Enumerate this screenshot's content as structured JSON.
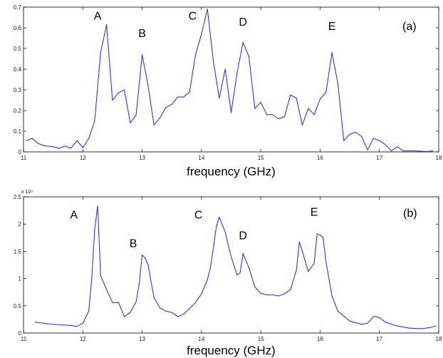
{
  "chart_data": [
    {
      "type": "line",
      "panel_label": "(a)",
      "xlabel": "frequency (GHz)",
      "ylabel": "",
      "xlim": [
        11,
        18
      ],
      "ylim": [
        0,
        0.7
      ],
      "x_ticks": [
        "11",
        "12",
        "13",
        "14",
        "15",
        "16",
        "17",
        "18"
      ],
      "y_ticks": [
        "0",
        "0.1",
        "0.2",
        "0.3",
        "0.4",
        "0.5",
        "0.6",
        "0.7"
      ],
      "scale_exponent": "",
      "grid": false,
      "annotations": [
        {
          "text": "A",
          "x": 12.25,
          "y": 0.64
        },
        {
          "text": "B",
          "x": 13.0,
          "y": 0.555
        },
        {
          "text": "C",
          "x": 13.85,
          "y": 0.64
        },
        {
          "text": "D",
          "x": 14.7,
          "y": 0.61
        },
        {
          "text": "E",
          "x": 16.2,
          "y": 0.59
        }
      ],
      "series": [
        {
          "x": [
            11.05,
            11.15,
            11.25,
            11.35,
            11.5,
            11.6,
            11.7,
            11.8,
            11.9,
            12.0,
            12.1,
            12.2,
            12.3,
            12.4,
            12.5,
            12.6,
            12.7,
            12.8,
            12.9,
            13.0,
            13.1,
            13.2,
            13.3,
            13.4,
            13.5,
            13.6,
            13.7,
            13.8,
            13.9,
            14.0,
            14.1,
            14.2,
            14.3,
            14.4,
            14.5,
            14.6,
            14.7,
            14.8,
            14.9,
            15.0,
            15.1,
            15.2,
            15.3,
            15.4,
            15.5,
            15.6,
            15.7,
            15.8,
            15.9,
            16.0,
            16.1,
            16.2,
            16.3,
            16.4,
            16.5,
            16.6,
            16.7,
            16.8,
            16.9,
            17.0,
            17.1,
            17.2,
            17.3,
            17.4,
            17.6,
            17.8,
            17.9
          ],
          "y": [
            0.055,
            0.065,
            0.04,
            0.03,
            0.025,
            0.018,
            0.028,
            0.018,
            0.055,
            0.02,
            0.065,
            0.15,
            0.48,
            0.615,
            0.25,
            0.285,
            0.3,
            0.14,
            0.18,
            0.47,
            0.32,
            0.13,
            0.165,
            0.215,
            0.23,
            0.265,
            0.265,
            0.29,
            0.47,
            0.57,
            0.69,
            0.44,
            0.26,
            0.4,
            0.19,
            0.38,
            0.53,
            0.46,
            0.21,
            0.24,
            0.18,
            0.18,
            0.16,
            0.17,
            0.275,
            0.26,
            0.13,
            0.21,
            0.18,
            0.255,
            0.29,
            0.48,
            0.33,
            0.055,
            0.085,
            0.095,
            0.075,
            0.01,
            0.065,
            0.055,
            0.035,
            0.005,
            0.025,
            0.005,
            0.005,
            0.002,
            0.005
          ]
        }
      ]
    },
    {
      "type": "line",
      "panel_label": "(b)",
      "xlabel": "frequency (GHz)",
      "ylabel": "",
      "xlim": [
        11,
        18
      ],
      "ylim": [
        0,
        2.5
      ],
      "x_ticks": [
        "11",
        "12",
        "13",
        "14",
        "15",
        "16",
        "17",
        "18"
      ],
      "y_ticks": [
        "0",
        "0.5",
        "1",
        "1.5",
        "2",
        "2.5"
      ],
      "scale_exponent": "x 10⁹",
      "grid": false,
      "annotations": [
        {
          "text": "A",
          "x": 11.85,
          "y": 2.1
        },
        {
          "text": "B",
          "x": 12.85,
          "y": 1.58
        },
        {
          "text": "C",
          "x": 13.95,
          "y": 2.1
        },
        {
          "text": "D",
          "x": 14.7,
          "y": 1.72
        },
        {
          "text": "E",
          "x": 15.9,
          "y": 2.15
        }
      ],
      "series": [
        {
          "x": [
            11.2,
            11.4,
            11.6,
            11.8,
            11.9,
            12.0,
            12.1,
            12.15,
            12.2,
            12.25,
            12.3,
            12.4,
            12.5,
            12.6,
            12.7,
            12.8,
            12.9,
            12.95,
            13.0,
            13.05,
            13.1,
            13.2,
            13.3,
            13.4,
            13.5,
            13.6,
            13.7,
            13.8,
            13.9,
            14.0,
            14.1,
            14.15,
            14.2,
            14.25,
            14.3,
            14.4,
            14.5,
            14.6,
            14.65,
            14.7,
            14.8,
            14.9,
            15.0,
            15.1,
            15.2,
            15.3,
            15.4,
            15.5,
            15.6,
            15.65,
            15.7,
            15.8,
            15.9,
            15.95,
            16.0,
            16.05,
            16.1,
            16.2,
            16.3,
            16.5,
            16.7,
            16.8,
            16.9,
            16.95,
            17.0,
            17.1,
            17.3,
            17.5,
            17.7,
            17.85,
            17.95
          ],
          "y": [
            0.2,
            0.17,
            0.15,
            0.14,
            0.12,
            0.18,
            0.4,
            1.0,
            1.9,
            2.33,
            1.05,
            0.8,
            0.56,
            0.56,
            0.3,
            0.38,
            0.58,
            0.9,
            1.43,
            1.38,
            1.25,
            0.65,
            0.46,
            0.4,
            0.38,
            0.3,
            0.35,
            0.45,
            0.56,
            0.72,
            0.98,
            1.2,
            1.55,
            1.95,
            2.13,
            1.85,
            1.4,
            1.07,
            1.1,
            1.46,
            1.2,
            0.85,
            0.73,
            0.7,
            0.7,
            0.68,
            0.72,
            0.8,
            1.15,
            1.67,
            1.5,
            1.13,
            1.28,
            1.82,
            1.8,
            1.75,
            1.3,
            0.68,
            0.4,
            0.22,
            0.16,
            0.18,
            0.3,
            0.3,
            0.28,
            0.2,
            0.13,
            0.09,
            0.08,
            0.1,
            0.13
          ]
        }
      ]
    }
  ]
}
